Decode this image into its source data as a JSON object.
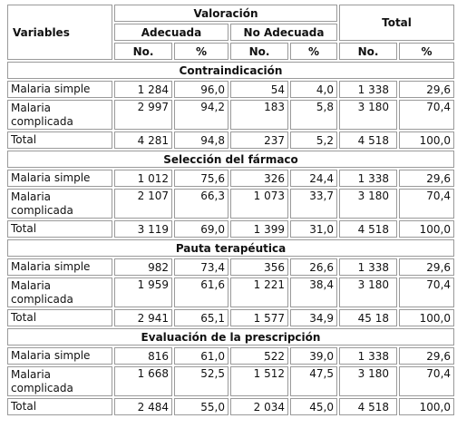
{
  "header": {
    "variables": "Variables",
    "valoracion": "Valoración",
    "total": "Total",
    "adecuada": "Adecuada",
    "no_adecuada": "No Adecuada",
    "no": "No.",
    "pct": "%"
  },
  "sections": [
    {
      "title": "Contraindicación",
      "rows": [
        {
          "label": "Malaria simple",
          "a_no": "1 284",
          "a_pct": "96,0",
          "n_no": "54",
          "n_pct": "4,0",
          "t_no": "1 338",
          "t_pct": "29,6"
        },
        {
          "label": "Malaria complicada",
          "a_no": "2 997",
          "a_pct": "94,2",
          "n_no": "183",
          "n_pct": "5,8",
          "t_no": "3 180",
          "t_pct": "70,4"
        },
        {
          "label": "Total",
          "a_no": "4 281",
          "a_pct": "94,8",
          "n_no": "237",
          "n_pct": "5,2",
          "t_no": "4 518",
          "t_pct": "100,0"
        }
      ]
    },
    {
      "title": "Selección del fármaco",
      "rows": [
        {
          "label": "Malaria simple",
          "a_no": "1 012",
          "a_pct": "75,6",
          "n_no": "326",
          "n_pct": "24,4",
          "t_no": "1 338",
          "t_pct": "29,6"
        },
        {
          "label": "Malaria complicada",
          "a_no": "2 107",
          "a_pct": "66,3",
          "n_no": "1 073",
          "n_pct": "33,7",
          "t_no": "3 180",
          "t_pct": "70,4"
        },
        {
          "label": "Total",
          "a_no": "3 119",
          "a_pct": "69,0",
          "n_no": "1 399",
          "n_pct": "31,0",
          "t_no": "4 518",
          "t_pct": "100,0"
        }
      ]
    },
    {
      "title": "Pauta terapéutica",
      "rows": [
        {
          "label": "Malaria simple",
          "a_no": "982",
          "a_pct": "73,4",
          "n_no": "356",
          "n_pct": "26,6",
          "t_no": "1 338",
          "t_pct": "29,6"
        },
        {
          "label": "Malaria complicada",
          "a_no": "1 959",
          "a_pct": "61,6",
          "n_no": "1 221",
          "n_pct": "38,4",
          "t_no": "3 180",
          "t_pct": "70,4"
        },
        {
          "label": "Total",
          "a_no": "2 941",
          "a_pct": "65,1",
          "n_no": "1 577",
          "n_pct": "34,9",
          "t_no": "45 18",
          "t_pct": "100,0"
        }
      ]
    },
    {
      "title": "Evaluación de la prescripción",
      "rows": [
        {
          "label": "Malaria simple",
          "a_no": "816",
          "a_pct": "61,0",
          "n_no": "522",
          "n_pct": "39,0",
          "t_no": "1 338",
          "t_pct": "29,6"
        },
        {
          "label": "Malaria complicada",
          "a_no": "1 668",
          "a_pct": "52,5",
          "n_no": "1 512",
          "n_pct": "47,5",
          "t_no": "3 180",
          "t_pct": "70,4"
        },
        {
          "label": "Total",
          "a_no": "2 484",
          "a_pct": "55,0",
          "n_no": "2 034",
          "n_pct": "45,0",
          "t_no": "4 518",
          "t_pct": "100,0"
        }
      ]
    }
  ]
}
